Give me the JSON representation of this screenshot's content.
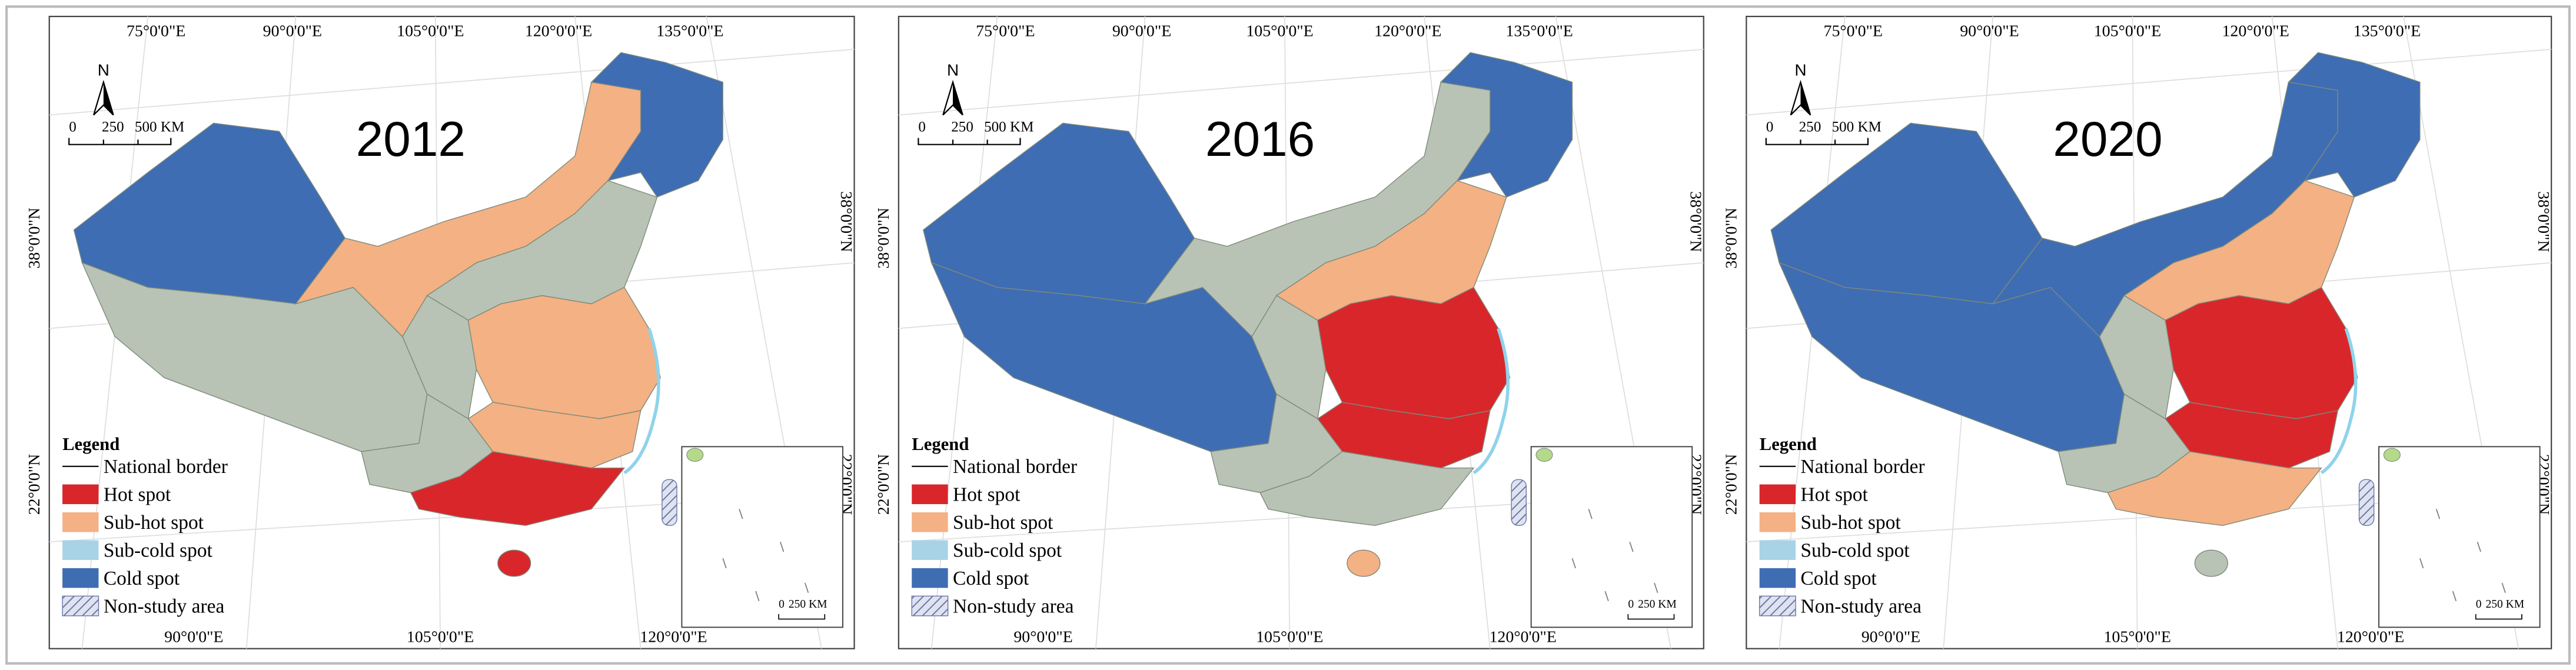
{
  "panels": [
    {
      "year": "2012",
      "north": "N",
      "scale_labels": [
        "0",
        "250",
        "500 KM"
      ],
      "top_labels": [
        "75°0'0\"E",
        "90°0'0\"E",
        "105°0'0\"E",
        "120°0'0\"E",
        "135°0'0\"E"
      ],
      "bottom_labels": [
        "90°0'0\"E",
        "105°0'0\"E",
        "120°0'0\"E"
      ],
      "left_labels": [
        "38°0'0\"N",
        "22°0'0\"N"
      ],
      "right_labels": [
        "38°0'0\"N",
        "22°0'0\"N"
      ],
      "inset_scale": [
        "0",
        "250 KM"
      ],
      "legend": {
        "title": "Legend",
        "items": [
          {
            "label": "National border"
          },
          {
            "label": "Hot spot",
            "color": "#d9262b"
          },
          {
            "label": "Sub-hot spot",
            "color": "#f4b183"
          },
          {
            "label": "Sub-cold spot",
            "color": "#a8d3e6"
          },
          {
            "label": "Cold spot",
            "color": "#3f6db3"
          },
          {
            "label": "Non-study area"
          }
        ]
      }
    },
    {
      "year": "2016",
      "north": "N",
      "scale_labels": [
        "0",
        "250",
        "500 KM"
      ],
      "top_labels": [
        "75°0'0\"E",
        "90°0'0\"E",
        "105°0'0\"E",
        "120°0'0\"E",
        "135°0'0\"E"
      ],
      "bottom_labels": [
        "90°0'0\"E",
        "105°0'0\"E",
        "120°0'0\"E"
      ],
      "left_labels": [
        "38°0'0\"N",
        "22°0'0\"N"
      ],
      "right_labels": [
        "38°0'0\"N",
        "22°0'0\"N"
      ],
      "inset_scale": [
        "0",
        "250 KM"
      ],
      "legend": {
        "title": "Legend",
        "items": [
          {
            "label": "National border"
          },
          {
            "label": "Hot spot",
            "color": "#d9262b"
          },
          {
            "label": "Sub-hot spot",
            "color": "#f4b183"
          },
          {
            "label": "Sub-cold spot",
            "color": "#a8d3e6"
          },
          {
            "label": "Cold spot",
            "color": "#3f6db3"
          },
          {
            "label": "Non-study area"
          }
        ]
      }
    },
    {
      "year": "2020",
      "north": "N",
      "scale_labels": [
        "0",
        "250",
        "500 KM"
      ],
      "top_labels": [
        "75°0'0\"E",
        "90°0'0\"E",
        "105°0'0\"E",
        "120°0'0\"E",
        "135°0'0\"E"
      ],
      "bottom_labels": [
        "90°0'0\"E",
        "105°0'0\"E",
        "120°0'0\"E"
      ],
      "left_labels": [
        "38°0'0\"N",
        "22°0'0\"N"
      ],
      "right_labels": [
        "38°0'0\"N",
        "22°0'0\"N"
      ],
      "inset_scale": [
        "0",
        "250 KM"
      ],
      "legend": {
        "title": "Legend",
        "items": [
          {
            "label": "National border"
          },
          {
            "label": "Hot spot",
            "color": "#d9262b"
          },
          {
            "label": "Sub-hot spot",
            "color": "#f4b183"
          },
          {
            "label": "Sub-cold spot",
            "color": "#a8d3e6"
          },
          {
            "label": "Cold spot",
            "color": "#3f6db3"
          },
          {
            "label": "Non-study area"
          }
        ]
      }
    }
  ]
}
